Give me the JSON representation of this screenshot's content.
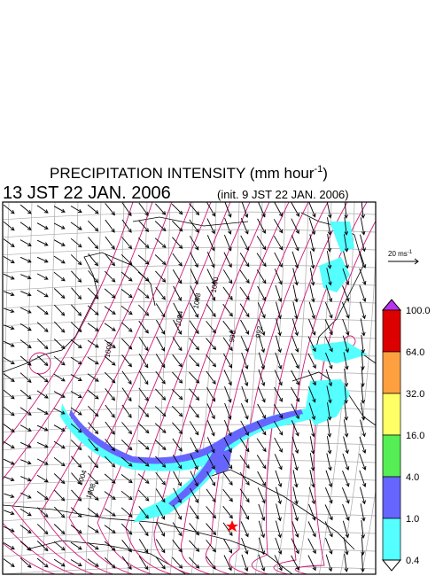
{
  "header": {
    "title": "PRECIPITATION INTENSITY (mm hour",
    "title_exponent": "-1",
    "title_close": ")",
    "valid_time": "13 JST 22 JAN. 2006",
    "init_time": "(init. 9 JST 22 JAN. 2006)"
  },
  "wind_reference": {
    "label": "20 ms",
    "exponent": "-1"
  },
  "contour_labels": [
    "1000",
    "1004",
    "1008",
    "1000",
    "996",
    "992",
    "1004",
    "1008"
  ],
  "colorbar": {
    "labels": [
      "100.0",
      "64.0",
      "32.0",
      "16.0",
      "4.0",
      "1.0",
      "0.4"
    ],
    "colors": [
      "#dd0000",
      "#ffa040",
      "#ffff66",
      "#55ee55",
      "#6666ff",
      "#55ffff"
    ],
    "over_color": "#bb33ee",
    "under_color": "#ffffff"
  }
}
